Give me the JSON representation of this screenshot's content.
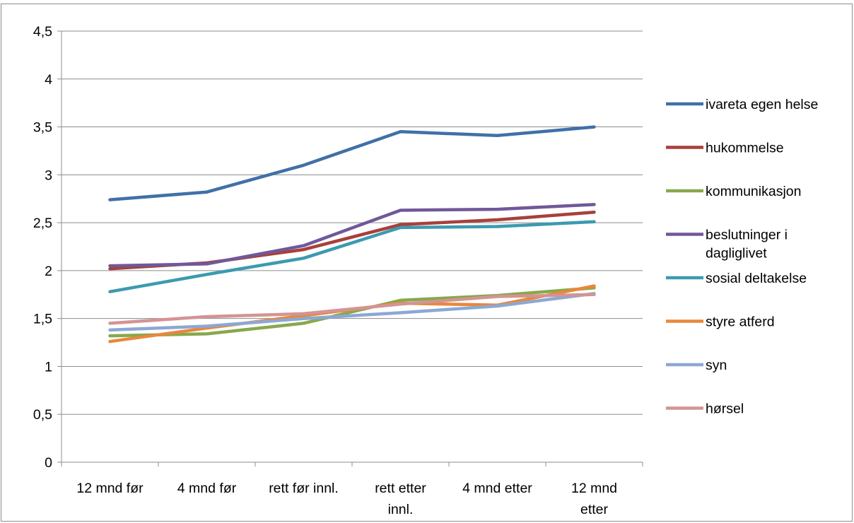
{
  "chart_data": {
    "type": "line",
    "categories": [
      [
        "12 mnd før"
      ],
      [
        "4 mnd før"
      ],
      [
        "rett før innl."
      ],
      [
        "rett etter",
        "innl."
      ],
      [
        "4 mnd etter"
      ],
      [
        "12 mnd",
        "etter"
      ]
    ],
    "ylim": [
      0,
      4.5
    ],
    "yticks": [
      "0",
      "0,5",
      "1",
      "1,5",
      "2",
      "2,5",
      "3",
      "3,5",
      "4",
      "4,5"
    ],
    "grid": true,
    "legend_position": "right",
    "title": "",
    "xlabel": "",
    "ylabel": "",
    "series": [
      {
        "name": "ivareta egen helse",
        "label_lines": [
          "ivareta egen helse"
        ],
        "color": "#4070a8",
        "values": [
          2.74,
          2.82,
          3.1,
          3.45,
          3.41,
          3.5
        ]
      },
      {
        "name": "hukommelse",
        "label_lines": [
          "hukommelse"
        ],
        "color": "#a8403c",
        "values": [
          2.02,
          2.08,
          2.22,
          2.48,
          2.53,
          2.61
        ]
      },
      {
        "name": "kommunikasjon",
        "label_lines": [
          "kommunikasjon"
        ],
        "color": "#88a84c",
        "values": [
          1.32,
          1.34,
          1.45,
          1.69,
          1.74,
          1.82
        ]
      },
      {
        "name": "beslutninger i dagliglivet",
        "label_lines": [
          "beslutninger i",
          "dagliglivet"
        ],
        "color": "#70589a",
        "values": [
          2.05,
          2.07,
          2.26,
          2.63,
          2.64,
          2.69
        ]
      },
      {
        "name": "sosial deltakelse",
        "label_lines": [
          "sosial deltakelse"
        ],
        "color": "#3c9ab0",
        "values": [
          1.78,
          1.96,
          2.13,
          2.45,
          2.46,
          2.51
        ]
      },
      {
        "name": "styre atferd",
        "label_lines": [
          "styre atferd"
        ],
        "color": "#e8883c",
        "values": [
          1.26,
          1.4,
          1.53,
          1.66,
          1.64,
          1.84
        ]
      },
      {
        "name": "syn",
        "label_lines": [
          "syn"
        ],
        "color": "#8ca8d4",
        "values": [
          1.38,
          1.42,
          1.5,
          1.56,
          1.63,
          1.76
        ]
      },
      {
        "name": "hørsel",
        "label_lines": [
          "hørsel"
        ],
        "color": "#d49494",
        "values": [
          1.45,
          1.52,
          1.55,
          1.65,
          1.73,
          1.75
        ]
      }
    ]
  }
}
